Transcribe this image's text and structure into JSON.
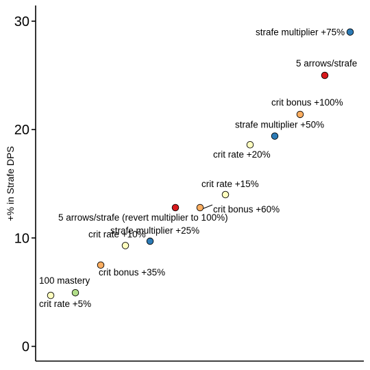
{
  "colors": {
    "mastery": "#b2df8a",
    "crit_rate": "#ffffbf",
    "crit_bonus": "#fdae61",
    "strafe_multiplier": "#2c7bb6",
    "arrows": "#d7191c"
  },
  "chart_data": {
    "type": "scatter",
    "title": "",
    "xlabel": "",
    "ylabel": "+% in Strafe DPS",
    "ylim": [
      -1.5,
      31.5
    ],
    "xlim": [
      0,
      20
    ],
    "yticks": [
      0,
      10,
      20,
      30
    ],
    "x_ticks_shown": false,
    "grid": false,
    "legend": "none",
    "points": [
      {
        "x": 1,
        "y": 4.7,
        "label": "crit rate +5%",
        "category": "crit_rate"
      },
      {
        "x": 2,
        "y": 4.95,
        "label": "100 mastery",
        "category": "mastery"
      },
      {
        "x": 3,
        "y": 7.5,
        "label": "crit bonus +35%",
        "category": "crit_bonus"
      },
      {
        "x": 4,
        "y": 9.3,
        "label": "crit rate +10%",
        "category": "crit_rate"
      },
      {
        "x": 5,
        "y": 9.7,
        "label": "strafe multiplier +25%",
        "category": "strafe_multiplier"
      },
      {
        "x": 6,
        "y": 12.8,
        "label": "5 arrows/strafe (revert multiplier to 100%)",
        "category": "arrows"
      },
      {
        "x": 7,
        "y": 12.8,
        "label": "crit bonus +60%",
        "category": "crit_bonus"
      },
      {
        "x": 8,
        "y": 14.0,
        "label": "crit rate +15%",
        "category": "crit_rate"
      },
      {
        "x": 9,
        "y": 18.6,
        "label": "crit rate +20%",
        "category": "crit_rate"
      },
      {
        "x": 10,
        "y": 19.4,
        "label": "strafe multiplier +50%",
        "category": "strafe_multiplier"
      },
      {
        "x": 11,
        "y": 21.4,
        "label": "crit bonus +100%",
        "category": "crit_bonus"
      },
      {
        "x": 12,
        "y": 25.0,
        "label": "5 arrows/strafe",
        "category": "arrows"
      },
      {
        "x": 13,
        "y": 29.0,
        "label": "strafe multiplier +75%",
        "category": "strafe_multiplier"
      }
    ]
  }
}
